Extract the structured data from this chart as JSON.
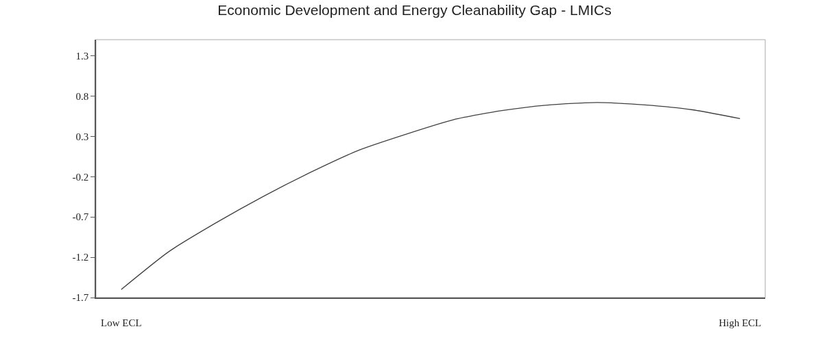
{
  "chart_data": {
    "type": "line",
    "title": "Economic Development and Energy Cleanability Gap - LMICs",
    "categories": [
      "Low ECL",
      null,
      null,
      null,
      null,
      null,
      null,
      null,
      null,
      null,
      null,
      null,
      null,
      "High ECL"
    ],
    "series": [
      {
        "color": "#404040",
        "values": [
          -1.6,
          -1.13,
          -0.77,
          -0.44,
          -0.14,
          0.13,
          0.33,
          0.51,
          0.62,
          0.69,
          0.72,
          0.69,
          0.63,
          0.52
        ]
      }
    ],
    "ylim": [
      -1.7,
      1.5
    ],
    "yticks": [
      -1.7,
      -1.2,
      -0.7,
      -0.2,
      0.3,
      0.8,
      1.3
    ],
    "grid": false,
    "marker": "none",
    "line_style": "solid"
  }
}
